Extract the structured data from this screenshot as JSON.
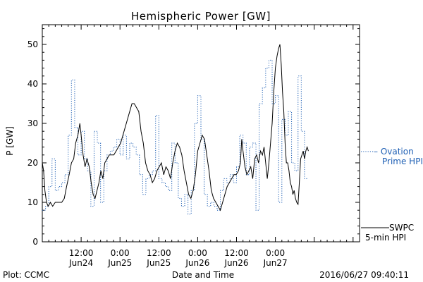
{
  "chart_data": {
    "type": "line",
    "title": "Hemispheric Power [GW]",
    "xlabel": "Date and Time",
    "ylabel": "P [GW]",
    "ylim": [
      0,
      55
    ],
    "yticks": [
      0,
      10,
      20,
      30,
      40,
      50
    ],
    "xlim": [
      0,
      98
    ],
    "x_unit": "hours since 2016-06-24 00:00",
    "xticks": [
      {
        "x": 12,
        "time": "12:00",
        "date": "Jun24"
      },
      {
        "x": 24,
        "time": "0:00",
        "date": "Jun25"
      },
      {
        "x": 36,
        "time": "12:00",
        "date": "Jun25"
      },
      {
        "x": 48,
        "time": "0:00",
        "date": "Jun26"
      },
      {
        "x": 60,
        "time": "12:00",
        "date": "Jun26"
      },
      {
        "x": 72,
        "time": "0:00",
        "date": "Jun27"
      }
    ],
    "series": [
      {
        "name_lines": [
          "SWPC",
          "5-min HPI"
        ],
        "color": "#000000",
        "style": "solid",
        "points": [
          [
            0,
            20
          ],
          [
            0.4,
            18
          ],
          [
            0.8,
            13
          ],
          [
            1.3,
            10
          ],
          [
            1.8,
            9
          ],
          [
            2.5,
            10
          ],
          [
            3.2,
            9
          ],
          [
            4,
            10
          ],
          [
            5,
            10
          ],
          [
            6,
            10
          ],
          [
            6.8,
            11
          ],
          [
            7.5,
            14
          ],
          [
            8.3,
            17
          ],
          [
            9,
            20
          ],
          [
            9.7,
            21
          ],
          [
            10.3,
            25
          ],
          [
            11,
            27
          ],
          [
            11.6,
            30
          ],
          [
            12,
            27
          ],
          [
            12.6,
            22
          ],
          [
            13.2,
            19
          ],
          [
            13.8,
            21
          ],
          [
            14.5,
            19
          ],
          [
            15.1,
            15
          ],
          [
            15.7,
            12
          ],
          [
            16.3,
            11
          ],
          [
            16.9,
            13
          ],
          [
            17.5,
            15
          ],
          [
            18.1,
            18
          ],
          [
            18.7,
            16
          ],
          [
            19.3,
            20
          ],
          [
            20,
            21
          ],
          [
            20.7,
            22
          ],
          [
            21.4,
            22
          ],
          [
            22.1,
            22
          ],
          [
            22.8,
            23
          ],
          [
            23.5,
            24
          ],
          [
            24.2,
            25
          ],
          [
            24.9,
            27
          ],
          [
            25.6,
            29
          ],
          [
            26.3,
            31
          ],
          [
            27,
            33
          ],
          [
            27.7,
            35
          ],
          [
            28.4,
            35
          ],
          [
            29.1,
            34
          ],
          [
            29.8,
            33
          ],
          [
            30.5,
            28
          ],
          [
            31.2,
            25
          ],
          [
            31.9,
            20
          ],
          [
            32.6,
            18
          ],
          [
            33.3,
            17
          ],
          [
            34,
            15
          ],
          [
            34.7,
            16
          ],
          [
            35.4,
            18
          ],
          [
            36.1,
            19
          ],
          [
            36.8,
            20
          ],
          [
            37.5,
            17
          ],
          [
            38.2,
            19
          ],
          [
            38.9,
            18
          ],
          [
            39.6,
            16
          ],
          [
            40.3,
            20
          ],
          [
            41,
            23
          ],
          [
            41.7,
            25
          ],
          [
            42.4,
            24
          ],
          [
            43.1,
            22
          ],
          [
            43.8,
            18
          ],
          [
            44.5,
            15
          ],
          [
            45.2,
            12
          ],
          [
            45.9,
            11
          ],
          [
            46.6,
            13
          ],
          [
            47.3,
            17
          ],
          [
            48,
            23
          ],
          [
            48.7,
            25
          ],
          [
            49.4,
            27
          ],
          [
            50.1,
            26
          ],
          [
            50.8,
            22
          ],
          [
            51.5,
            18
          ],
          [
            52.2,
            13
          ],
          [
            52.9,
            11
          ],
          [
            53.6,
            10
          ],
          [
            54.3,
            9
          ],
          [
            55,
            8
          ],
          [
            55.7,
            10
          ],
          [
            56.4,
            12
          ],
          [
            57.1,
            14
          ],
          [
            57.8,
            15
          ],
          [
            58.5,
            16
          ],
          [
            59.2,
            17
          ],
          [
            59.9,
            17
          ],
          [
            60.6,
            18
          ],
          [
            61.2,
            20
          ],
          [
            61.6,
            26
          ],
          [
            62,
            23
          ],
          [
            62.6,
            19
          ],
          [
            63.2,
            17
          ],
          [
            63.8,
            18
          ],
          [
            64.4,
            19
          ],
          [
            65,
            16
          ],
          [
            65.6,
            21
          ],
          [
            66.2,
            22
          ],
          [
            66.8,
            20
          ],
          [
            67.4,
            23
          ],
          [
            68,
            22
          ],
          [
            68.5,
            24
          ],
          [
            69,
            20
          ],
          [
            69.5,
            16
          ],
          [
            70,
            20
          ],
          [
            70.5,
            25
          ],
          [
            71,
            30
          ],
          [
            71.5,
            38
          ],
          [
            72,
            44
          ],
          [
            72.5,
            47
          ],
          [
            73,
            49
          ],
          [
            73.4,
            50
          ],
          [
            73.8,
            45
          ],
          [
            74.2,
            38
          ],
          [
            74.6,
            33
          ],
          [
            75,
            25
          ],
          [
            75.4,
            20
          ],
          [
            75.8,
            20
          ],
          [
            76.2,
            18
          ],
          [
            76.6,
            15
          ],
          [
            77,
            14
          ],
          [
            77.4,
            12
          ],
          [
            77.8,
            13
          ],
          [
            78.2,
            11
          ],
          [
            78.6,
            10
          ],
          [
            79,
            9.5
          ],
          [
            79.4,
            15
          ],
          [
            79.8,
            21
          ],
          [
            80.2,
            22
          ],
          [
            80.6,
            23
          ],
          [
            81,
            21
          ],
          [
            81.4,
            23
          ],
          [
            81.8,
            24
          ],
          [
            82.2,
            23
          ]
        ]
      },
      {
        "name_lines": [
          "– Ovation",
          "Prime HPI"
        ],
        "color": "#1e5fb4",
        "style": "dotted-step",
        "points": [
          [
            0,
            8
          ],
          [
            1,
            9
          ],
          [
            2,
            14
          ],
          [
            3,
            21
          ],
          [
            4,
            13
          ],
          [
            5,
            14
          ],
          [
            6,
            15
          ],
          [
            7,
            17
          ],
          [
            8,
            27
          ],
          [
            9,
            41
          ],
          [
            10,
            29
          ],
          [
            11,
            22
          ],
          [
            12,
            28
          ],
          [
            13,
            21
          ],
          [
            14,
            18
          ],
          [
            15,
            9
          ],
          [
            16,
            28
          ],
          [
            17,
            25
          ],
          [
            18,
            10
          ],
          [
            19,
            18
          ],
          [
            20,
            22
          ],
          [
            21,
            23
          ],
          [
            22,
            24
          ],
          [
            23,
            26
          ],
          [
            24,
            22
          ],
          [
            25,
            27
          ],
          [
            26,
            21
          ],
          [
            27,
            25
          ],
          [
            28,
            24
          ],
          [
            29,
            22
          ],
          [
            30,
            17
          ],
          [
            31,
            12
          ],
          [
            32,
            16
          ],
          [
            33,
            17
          ],
          [
            34,
            18
          ],
          [
            35,
            32
          ],
          [
            36,
            16
          ],
          [
            37,
            15
          ],
          [
            38,
            14
          ],
          [
            39,
            13
          ],
          [
            40,
            25
          ],
          [
            41,
            20
          ],
          [
            42,
            11
          ],
          [
            43,
            9
          ],
          [
            44,
            12
          ],
          [
            45,
            7
          ],
          [
            46,
            13
          ],
          [
            47,
            30
          ],
          [
            48,
            37
          ],
          [
            49,
            26
          ],
          [
            50,
            12
          ],
          [
            51,
            9
          ],
          [
            52,
            10
          ],
          [
            53,
            9
          ],
          [
            54,
            8
          ],
          [
            55,
            13
          ],
          [
            56,
            16
          ],
          [
            57,
            15
          ],
          [
            58,
            17
          ],
          [
            59,
            15
          ],
          [
            60,
            19
          ],
          [
            61,
            27
          ],
          [
            62,
            25
          ],
          [
            63,
            17
          ],
          [
            64,
            24
          ],
          [
            65,
            25
          ],
          [
            66,
            8
          ],
          [
            67,
            35
          ],
          [
            68,
            39
          ],
          [
            69,
            44
          ],
          [
            70,
            46
          ],
          [
            71,
            35
          ],
          [
            72,
            37
          ],
          [
            73,
            10
          ],
          [
            74,
            31
          ],
          [
            75,
            27
          ],
          [
            76,
            33
          ],
          [
            77,
            20
          ],
          [
            78,
            18
          ],
          [
            79,
            42
          ],
          [
            80,
            28
          ],
          [
            81,
            16
          ]
        ]
      }
    ]
  },
  "footer": {
    "left": "Plot: CCMC",
    "right": "2016/06/27 09:40:11"
  }
}
